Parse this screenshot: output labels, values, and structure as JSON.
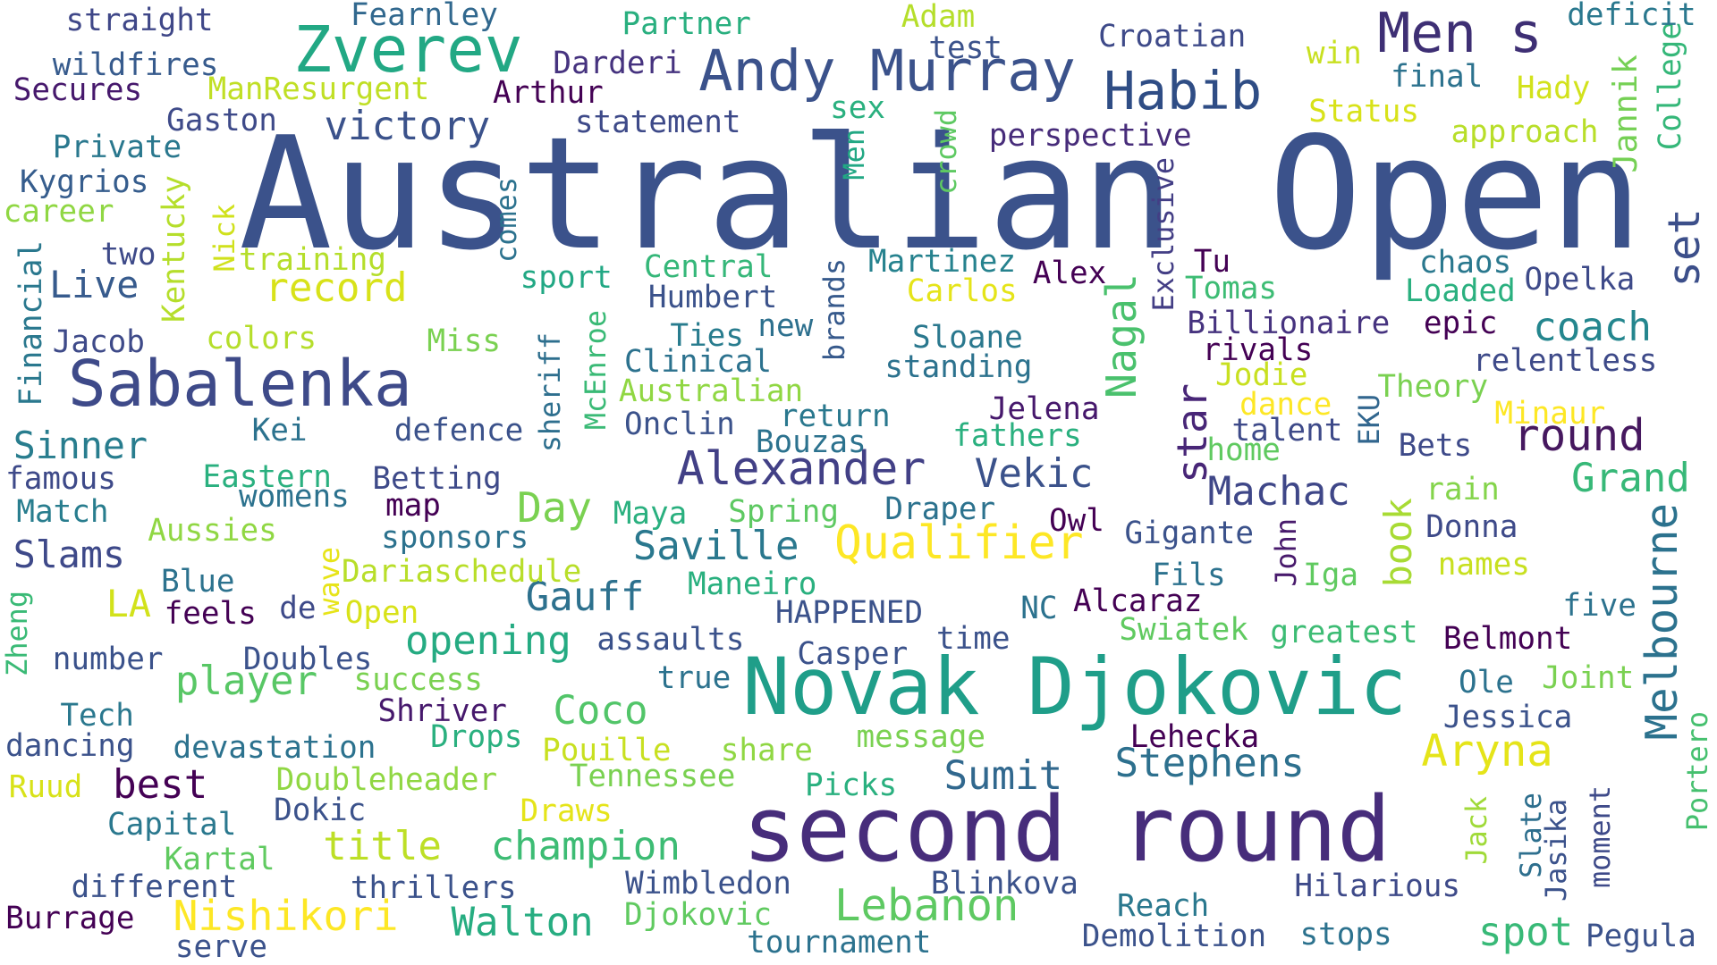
{
  "palette": {
    "dark_purple": "#440154",
    "indigo": "#3b528b",
    "navy": "#2c4a7c",
    "teal": "#21918c",
    "green": "#35b779",
    "lime": "#90d743",
    "yellow": "#fde725"
  },
  "words": [
    {
      "text": "Australian Open",
      "color": "#3b528b"
    },
    {
      "text": "Novak Djokovic",
      "color": "#1f9e89"
    },
    {
      "text": "second round",
      "color": "#472d7b"
    },
    {
      "text": "Sabalenka",
      "color": "#3e4a89"
    },
    {
      "text": "Zverev",
      "color": "#22a884"
    },
    {
      "text": "Andy Murray",
      "color": "#3b528b"
    },
    {
      "text": "Men s",
      "color": "#3e2f74"
    },
    {
      "text": "Habib",
      "color": "#2f4d85"
    },
    {
      "text": "Melbourne",
      "color": "#2c728e"
    },
    {
      "text": "Alexander",
      "color": "#424086"
    },
    {
      "text": "Qualifier",
      "color": "#fde725"
    },
    {
      "text": "Aryna",
      "color": "#e5e419"
    },
    {
      "text": "Lebanon",
      "color": "#5ec962"
    },
    {
      "text": "round",
      "color": "#46185f"
    },
    {
      "text": "Nishikori",
      "color": "#fde725"
    },
    {
      "text": "star",
      "color": "#482677"
    },
    {
      "text": "set",
      "color": "#3c4f8a"
    },
    {
      "text": "Nagal",
      "color": "#4ac16d"
    },
    {
      "text": "Saville",
      "color": "#2a788e"
    },
    {
      "text": "Stephens",
      "color": "#2d708e"
    },
    {
      "text": "Gauff",
      "color": "#2d718e"
    },
    {
      "text": "Machac",
      "color": "#3f4788"
    },
    {
      "text": "victory",
      "color": "#3b528b"
    },
    {
      "text": "record",
      "color": "#d8e219"
    },
    {
      "text": "champion",
      "color": "#3dbc74"
    },
    {
      "text": "title",
      "color": "#bddf26"
    },
    {
      "text": "Walton",
      "color": "#27ad81"
    },
    {
      "text": "Coco",
      "color": "#52c569"
    },
    {
      "text": "Sinner",
      "color": "#287d8e"
    },
    {
      "text": "Live",
      "color": "#375b8d"
    },
    {
      "text": "Day",
      "color": "#7ad151"
    },
    {
      "text": "opening",
      "color": "#25ab82"
    },
    {
      "text": "player",
      "color": "#58c765"
    },
    {
      "text": "best",
      "color": "#440154"
    },
    {
      "text": "spot",
      "color": "#38b977"
    },
    {
      "text": "Sumit",
      "color": "#31688e"
    },
    {
      "text": "Grand",
      "color": "#37b878"
    },
    {
      "text": "coach",
      "color": "#24868e"
    },
    {
      "text": "book",
      "color": "#a8db34"
    },
    {
      "text": "Vekic",
      "color": "#3b528b"
    },
    {
      "text": "Slams",
      "color": "#3e4989"
    },
    {
      "text": "LA",
      "color": "#d2e21b"
    },
    {
      "text": "Jannik",
      "color": "#75d054"
    },
    {
      "text": "College",
      "color": "#35b779"
    },
    {
      "text": "Kentucky",
      "color": "#b5de2b"
    },
    {
      "text": "Financial",
      "color": "#2a788e"
    },
    {
      "text": "comes",
      "color": "#2c728e"
    },
    {
      "text": "crowd",
      "color": "#5ec962"
    },
    {
      "text": "Men",
      "color": "#22a884"
    },
    {
      "text": "Nick",
      "color": "#d0e11c"
    },
    {
      "text": "Exclusive",
      "color": "#433e85"
    },
    {
      "text": "brands",
      "color": "#375a8c"
    },
    {
      "text": "sheriff",
      "color": "#2e6f8e"
    },
    {
      "text": "McEnroe",
      "color": "#3aba76"
    },
    {
      "text": "wave",
      "color": "#e7e419"
    },
    {
      "text": "EKU",
      "color": "#31668e"
    },
    {
      "text": "John",
      "color": "#481a6c"
    },
    {
      "text": "Zheng",
      "color": "#3aba76"
    },
    {
      "text": "Jack",
      "color": "#a0da39"
    },
    {
      "text": "Slate",
      "color": "#2e6f8e"
    },
    {
      "text": "Jasika",
      "color": "#3b528b"
    },
    {
      "text": "moment",
      "color": "#3e4a89"
    },
    {
      "text": "Portero",
      "color": "#46c06f"
    },
    {
      "text": "straight",
      "color": "#3f4788"
    },
    {
      "text": "Fearnley",
      "color": "#31688e"
    },
    {
      "text": "Partner",
      "color": "#29af7f"
    },
    {
      "text": "Adam",
      "color": "#b5de2b"
    },
    {
      "text": "test",
      "color": "#3b528b"
    },
    {
      "text": "Croatian",
      "color": "#3e4a89"
    },
    {
      "text": "deficit",
      "color": "#2a788e"
    },
    {
      "text": "wildfires",
      "color": "#375b8d"
    },
    {
      "text": "Darderi",
      "color": "#46337f"
    },
    {
      "text": "win",
      "color": "#c8e020"
    },
    {
      "text": "Secures",
      "color": "#46186c"
    },
    {
      "text": "ManResurgent",
      "color": "#c0df25"
    },
    {
      "text": "Arthur",
      "color": "#440154"
    },
    {
      "text": "final",
      "color": "#2c728e"
    },
    {
      "text": "Hady",
      "color": "#d2e21b"
    },
    {
      "text": "Gaston",
      "color": "#3e4a89"
    },
    {
      "text": "sex",
      "color": "#2ab07f"
    },
    {
      "text": "statement",
      "color": "#3e4a89"
    },
    {
      "text": "Status",
      "color": "#d8e219"
    },
    {
      "text": "Private",
      "color": "#2a788e"
    },
    {
      "text": "perspective",
      "color": "#472c7a"
    },
    {
      "text": "approach",
      "color": "#b8de29"
    },
    {
      "text": "Kygrios",
      "color": "#365d8d"
    },
    {
      "text": "career",
      "color": "#90d743"
    },
    {
      "text": "two",
      "color": "#3e4a89"
    },
    {
      "text": "training",
      "color": "#b5de2b"
    },
    {
      "text": "Martinez",
      "color": "#26828e"
    },
    {
      "text": "Tu",
      "color": "#440154"
    },
    {
      "text": "chaos",
      "color": "#2a788e"
    },
    {
      "text": "Central",
      "color": "#35b779"
    },
    {
      "text": "sport",
      "color": "#22a884"
    },
    {
      "text": "Alex",
      "color": "#440154"
    },
    {
      "text": "Tomas",
      "color": "#3dbc74"
    },
    {
      "text": "Loaded",
      "color": "#2ab07f"
    },
    {
      "text": "Opelka",
      "color": "#3e4a89"
    },
    {
      "text": "Humbert",
      "color": "#3b528b"
    },
    {
      "text": "Carlos",
      "color": "#e5e419"
    },
    {
      "text": "Billionaire",
      "color": "#46337f"
    },
    {
      "text": "epic",
      "color": "#440154"
    },
    {
      "text": "new",
      "color": "#2d708e"
    },
    {
      "text": "Jacob",
      "color": "#3e4a89"
    },
    {
      "text": "colors",
      "color": "#b5de2b"
    },
    {
      "text": "Miss",
      "color": "#7ad151"
    },
    {
      "text": "Ties",
      "color": "#287c8e"
    },
    {
      "text": "Sloane",
      "color": "#2a788e"
    },
    {
      "text": "rivals",
      "color": "#440154"
    },
    {
      "text": "relentless",
      "color": "#3e4a89"
    },
    {
      "text": "Clinical",
      "color": "#2c728e"
    },
    {
      "text": "standing",
      "color": "#2c728e"
    },
    {
      "text": "Jodie",
      "color": "#c8e020"
    },
    {
      "text": "Australian",
      "color": "#90d743"
    },
    {
      "text": "Theory",
      "color": "#7ad151"
    },
    {
      "text": "dance",
      "color": "#fde725"
    },
    {
      "text": "Jelena",
      "color": "#46186c"
    },
    {
      "text": "Minaur",
      "color": "#fde725"
    },
    {
      "text": "return",
      "color": "#2a788e"
    },
    {
      "text": "Kei",
      "color": "#2c728e"
    },
    {
      "text": "defence",
      "color": "#3b528b"
    },
    {
      "text": "Onclin",
      "color": "#3b528b"
    },
    {
      "text": "talent",
      "color": "#3e4a89"
    },
    {
      "text": "fathers",
      "color": "#2ab07f"
    },
    {
      "text": "Bouzas",
      "color": "#2c728e"
    },
    {
      "text": "home",
      "color": "#60ca60"
    },
    {
      "text": "Bets",
      "color": "#3e4a89"
    },
    {
      "text": "famous",
      "color": "#3e4a89"
    },
    {
      "text": "Eastern",
      "color": "#2ab07f"
    },
    {
      "text": "Betting",
      "color": "#3e4a89"
    },
    {
      "text": "rain",
      "color": "#84d44b"
    },
    {
      "text": "womens",
      "color": "#2c728e"
    },
    {
      "text": "map",
      "color": "#440154"
    },
    {
      "text": "Match",
      "color": "#287d8e"
    },
    {
      "text": "Maya",
      "color": "#2ab07f"
    },
    {
      "text": "Spring",
      "color": "#5ec962"
    },
    {
      "text": "Draper",
      "color": "#2c728e"
    },
    {
      "text": "Owl",
      "color": "#440154"
    },
    {
      "text": "Donna",
      "color": "#3e4a89"
    },
    {
      "text": "Aussies",
      "color": "#90d743"
    },
    {
      "text": "sponsors",
      "color": "#2c728e"
    },
    {
      "text": "Gigante",
      "color": "#3b528b"
    },
    {
      "text": "names",
      "color": "#c8e020"
    },
    {
      "text": "Dariaschedule",
      "color": "#b8de29"
    },
    {
      "text": "Fils",
      "color": "#2c728e"
    },
    {
      "text": "Blue",
      "color": "#2c728e"
    },
    {
      "text": "Maneiro",
      "color": "#2ab07f"
    },
    {
      "text": "Iga",
      "color": "#60ca60"
    },
    {
      "text": "feels",
      "color": "#440154"
    },
    {
      "text": "de",
      "color": "#3e4a89"
    },
    {
      "text": "Open",
      "color": "#d8e219"
    },
    {
      "text": "HAPPENED",
      "color": "#3b528b"
    },
    {
      "text": "NC",
      "color": "#2c728e"
    },
    {
      "text": "Alcaraz",
      "color": "#440154"
    },
    {
      "text": "five",
      "color": "#2c728e"
    },
    {
      "text": "time",
      "color": "#3b528b"
    },
    {
      "text": "Swiatek",
      "color": "#60ca60"
    },
    {
      "text": "greatest",
      "color": "#3dbc74"
    },
    {
      "text": "assaults",
      "color": "#3b528b"
    },
    {
      "text": "Belmont",
      "color": "#440154"
    },
    {
      "text": "number",
      "color": "#3b528b"
    },
    {
      "text": "Doubles",
      "color": "#3b528b"
    },
    {
      "text": "Casper",
      "color": "#3b528b"
    },
    {
      "text": "success",
      "color": "#7ad151"
    },
    {
      "text": "true",
      "color": "#2c728e"
    },
    {
      "text": "Ole",
      "color": "#2c728e"
    },
    {
      "text": "Joint",
      "color": "#7ad151"
    },
    {
      "text": "Tech",
      "color": "#2a788e"
    },
    {
      "text": "Shriver",
      "color": "#46186c"
    },
    {
      "text": "Jessica",
      "color": "#3b528b"
    },
    {
      "text": "dancing",
      "color": "#3b528b"
    },
    {
      "text": "devastation",
      "color": "#2c728e"
    },
    {
      "text": "Drops",
      "color": "#2ab07f"
    },
    {
      "text": "message",
      "color": "#7ad151"
    },
    {
      "text": "Lehecka",
      "color": "#440154"
    },
    {
      "text": "Pouille",
      "color": "#c8e020"
    },
    {
      "text": "share",
      "color": "#90d743"
    },
    {
      "text": "Ruud",
      "color": "#d8e219"
    },
    {
      "text": "Doubleheader",
      "color": "#90d743"
    },
    {
      "text": "Tennessee",
      "color": "#7ad151"
    },
    {
      "text": "Picks",
      "color": "#2ab07f"
    },
    {
      "text": "Capital",
      "color": "#2a788e"
    },
    {
      "text": "Dokic",
      "color": "#3b528b"
    },
    {
      "text": "Draws",
      "color": "#e5e419"
    },
    {
      "text": "Kartal",
      "color": "#60ca60"
    },
    {
      "text": "different",
      "color": "#3b528b"
    },
    {
      "text": "thrillers",
      "color": "#3b528b"
    },
    {
      "text": "Wimbledon",
      "color": "#3b528b"
    },
    {
      "text": "Blinkova",
      "color": "#3b528b"
    },
    {
      "text": "Hilarious",
      "color": "#3e4a89"
    },
    {
      "text": "Burrage",
      "color": "#440154"
    },
    {
      "text": "Djokovic",
      "color": "#60ca60"
    },
    {
      "text": "Reach",
      "color": "#2a788e"
    },
    {
      "text": "serve",
      "color": "#3b528b"
    },
    {
      "text": "tournament",
      "color": "#2c728e"
    },
    {
      "text": "Demolition",
      "color": "#3b528b"
    },
    {
      "text": "stops",
      "color": "#2c728e"
    },
    {
      "text": "Pegula",
      "color": "#3b528b"
    }
  ]
}
